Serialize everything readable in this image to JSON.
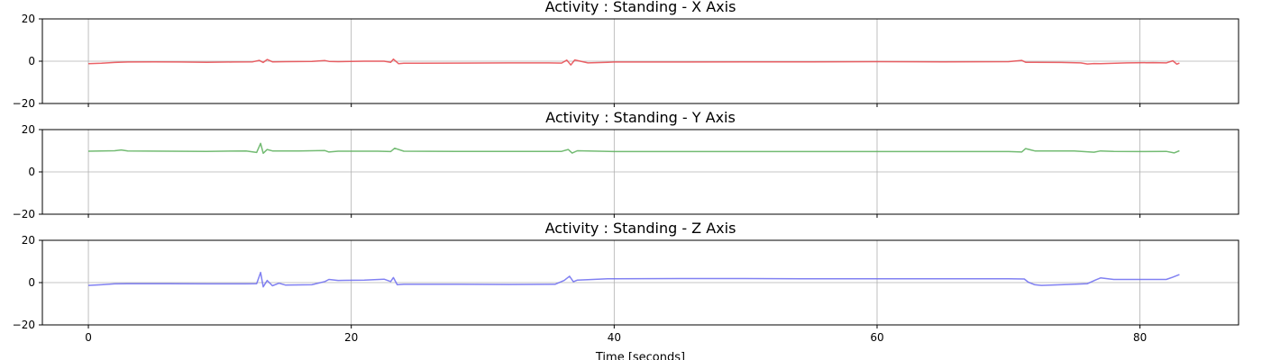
{
  "chart_data": [
    {
      "type": "line",
      "title": "Activity : Standing - X Axis",
      "xlabel": "",
      "ylabel": "",
      "xlim": [
        -3.5,
        87.5
      ],
      "ylim": [
        -20,
        20
      ],
      "xticks": [
        0,
        20,
        40,
        60,
        80
      ],
      "yticks": [
        20,
        0,
        -20
      ],
      "show_xtick_labels": false,
      "grid": true,
      "color": "#e8474c",
      "series": [
        {
          "x": [
            0,
            1,
            2,
            3,
            5,
            7,
            9,
            11,
            12.5,
            13,
            13.3,
            13.6,
            14,
            15,
            17,
            18,
            18.3,
            19,
            21,
            22.5,
            23,
            23.2,
            23.6,
            24,
            25,
            28,
            32,
            35,
            36,
            36.4,
            36.7,
            37,
            38,
            39.5,
            40,
            45,
            50,
            55,
            60,
            65,
            70,
            71,
            71.3,
            72,
            74,
            75.5,
            76,
            76.5,
            77,
            79,
            81,
            82,
            82.5,
            82.8,
            83
          ],
          "y": [
            -1.2,
            -1.0,
            -0.6,
            -0.4,
            -0.3,
            -0.4,
            -0.5,
            -0.4,
            -0.3,
            0.4,
            -0.6,
            0.8,
            -0.3,
            -0.2,
            -0.1,
            0.3,
            -0.1,
            -0.2,
            0.0,
            0.0,
            -0.5,
            1.0,
            -1.2,
            -1.0,
            -1.0,
            -0.9,
            -0.8,
            -0.8,
            -0.9,
            0.5,
            -1.8,
            0.6,
            -0.8,
            -0.5,
            -0.4,
            -0.4,
            -0.3,
            -0.3,
            -0.2,
            -0.3,
            -0.2,
            0.4,
            -0.5,
            -0.5,
            -0.6,
            -0.8,
            -1.3,
            -1.1,
            -1.2,
            -0.8,
            -0.7,
            -0.8,
            0.2,
            -1.4,
            -0.9
          ]
        }
      ]
    },
    {
      "type": "line",
      "title": "Activity : Standing - Y Axis",
      "xlabel": "",
      "ylabel": "",
      "xlim": [
        -3.5,
        87.5
      ],
      "ylim": [
        -20,
        20
      ],
      "xticks": [
        0,
        20,
        40,
        60,
        80
      ],
      "yticks": [
        20,
        0,
        -20
      ],
      "show_xtick_labels": false,
      "grid": true,
      "color": "#5aaf5a",
      "series": [
        {
          "x": [
            0,
            2,
            2.5,
            3,
            6,
            9,
            12,
            12.8,
            13.1,
            13.3,
            13.6,
            14,
            16,
            18,
            18.3,
            19,
            22,
            23,
            23.3,
            24,
            28,
            32,
            36,
            36.5,
            36.8,
            37.2,
            40,
            45,
            50,
            55,
            60,
            65,
            70,
            71,
            71.3,
            72,
            75,
            76.5,
            77,
            78,
            80,
            82,
            82.6,
            83
          ],
          "y": [
            9.8,
            10.0,
            10.4,
            9.9,
            9.8,
            9.7,
            9.9,
            9.2,
            13.5,
            8.8,
            10.6,
            9.9,
            9.9,
            10.1,
            9.4,
            9.8,
            9.8,
            9.6,
            11.2,
            9.8,
            9.7,
            9.7,
            9.7,
            10.6,
            8.9,
            10.0,
            9.6,
            9.6,
            9.6,
            9.6,
            9.6,
            9.6,
            9.6,
            9.4,
            11.0,
            9.9,
            9.9,
            9.3,
            9.9,
            9.7,
            9.6,
            9.7,
            9.0,
            10.0
          ]
        }
      ]
    },
    {
      "type": "line",
      "title": "Activity : Standing - Z Axis",
      "xlabel": "Time [seconds]",
      "ylabel": "",
      "xlim": [
        -3.5,
        87.5
      ],
      "ylim": [
        -20,
        20
      ],
      "xticks": [
        0,
        20,
        40,
        60,
        80
      ],
      "yticks": [
        20,
        0,
        -20
      ],
      "show_xtick_labels": true,
      "grid": true,
      "color": "#6b6bf0",
      "series": [
        {
          "x": [
            0,
            1,
            2,
            3,
            6,
            9,
            12,
            12.8,
            13.1,
            13.3,
            13.6,
            14,
            14.5,
            15,
            17,
            18,
            18.3,
            19,
            21,
            22.5,
            23,
            23.2,
            23.5,
            24,
            28,
            32,
            35.5,
            36.2,
            36.6,
            36.9,
            37.2,
            38,
            39.5,
            40,
            45,
            50,
            55,
            60,
            65,
            70,
            71.2,
            71.5,
            72,
            72.5,
            74,
            76,
            76.6,
            77,
            78,
            80,
            82,
            82.5,
            83
          ],
          "y": [
            -1.3,
            -1.0,
            -0.6,
            -0.5,
            -0.5,
            -0.6,
            -0.6,
            -0.5,
            4.8,
            -2.0,
            1.0,
            -1.5,
            -0.3,
            -1.2,
            -1.0,
            0.5,
            1.5,
            1.0,
            1.2,
            1.6,
            0.5,
            2.4,
            -1.0,
            -0.8,
            -0.8,
            -0.9,
            -0.8,
            1.0,
            3.0,
            0.4,
            1.2,
            1.4,
            1.8,
            1.8,
            1.9,
            1.9,
            1.8,
            1.8,
            1.8,
            1.8,
            1.7,
            0.2,
            -1.0,
            -1.3,
            -1.0,
            -0.5,
            1.2,
            2.2,
            1.5,
            1.5,
            1.5,
            2.6,
            3.8
          ]
        }
      ]
    }
  ]
}
